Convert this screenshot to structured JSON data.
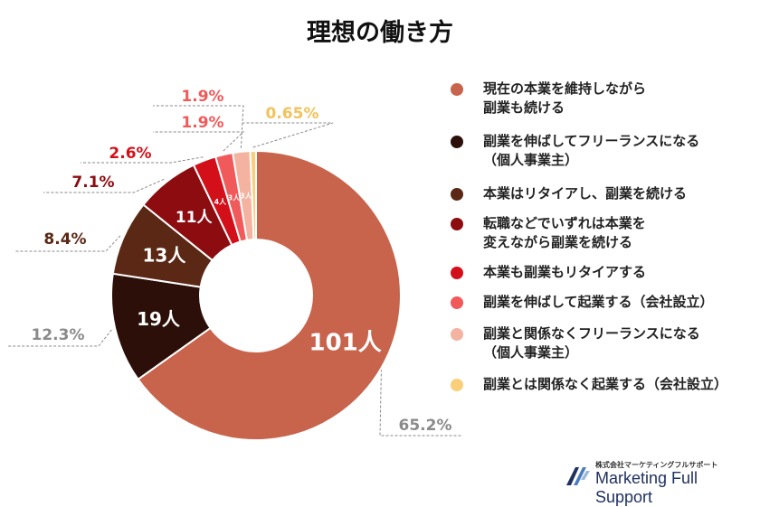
{
  "chart_data": {
    "type": "pie",
    "title": "理想の働き方",
    "categories": [
      "現在の本業を維持しながら副業も続ける",
      "副業を伸ばしてフリーランスになる（個人事業主）",
      "本業はリタイアし、副業を続ける",
      "転職などでいずれは本業を変えながら副業を続ける",
      "本業も副業もリタイアする",
      "副業を伸ばして起業する（会社設立）",
      "副業と関係なくフリーランスになる（個人事業主）",
      "副業とは関係なく起業する（会社設立）"
    ],
    "values": [
      101,
      19,
      13,
      11,
      4,
      3,
      3,
      1
    ],
    "value_labels": [
      "101人",
      "19人",
      "13人",
      "11人",
      "4人",
      "3人",
      "3人",
      ""
    ],
    "percent_labels": [
      "65.2%",
      "12.3%",
      "8.4%",
      "7.1%",
      "2.6%",
      "1.9%",
      "1.9%",
      "0.65%"
    ],
    "legend": [
      [
        "現在の本業を維持しながら",
        "副業も続ける"
      ],
      [
        "副業を伸ばしてフリーランスになる",
        "（個人事業主）"
      ],
      [
        "本業はリタイアし、副業を続ける"
      ],
      [
        "転職などでいずれは本業を",
        "変えながら副業を続ける"
      ],
      [
        "本業も副業もリタイアする"
      ],
      [
        "副業を伸ばして起業する（会社設立）"
      ],
      [
        "副業と関係なくフリーランスになる",
        "（個人事業主）"
      ],
      [
        "副業とは関係なく起業する（会社設立）"
      ]
    ],
    "colors": [
      "#c8634c",
      "#2b0f08",
      "#5a2814",
      "#8c0c10",
      "#d3101a",
      "#f05a5a",
      "#f4b3a0",
      "#f9cf79"
    ],
    "percent_label_colors": [
      "#8a8a8a",
      "#8a8a8a",
      "#5a2814",
      "#8c0c10",
      "#d3101a",
      "#f05a5a",
      "#f05a5a",
      "#f2c25c"
    ],
    "legend_placement": "right"
  },
  "logo": {
    "company_ja": "株式会社マーケティングフルサポート",
    "company_en": "Marketing Full Support"
  }
}
